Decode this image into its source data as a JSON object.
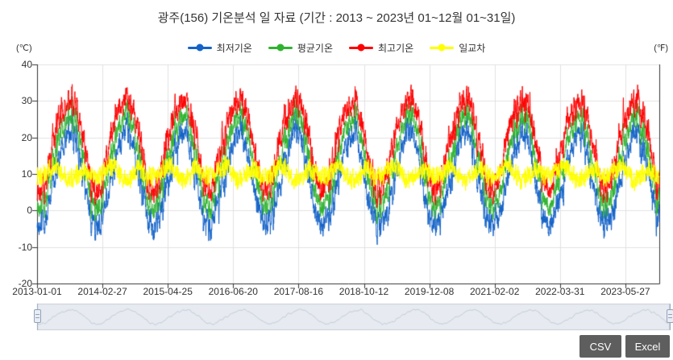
{
  "chart": {
    "title": "광주(156) 기온분석 일 자료 (기간 : 2013 ~ 2023년  01~12월 01~31일)",
    "y_axis_left": {
      "unit": "(℃)",
      "ticks": [
        40,
        30,
        20,
        10,
        0,
        -10,
        -20
      ],
      "min": -20,
      "max": 40
    },
    "y_axis_right": {
      "unit": "(℉)"
    },
    "x_axis": {
      "tick_labels": [
        "2013-01-01",
        "2014-02-27",
        "2015-04-25",
        "2016-06-20",
        "2017-08-16",
        "2018-10-12",
        "2019-12-08",
        "2021-02-02",
        "2022-03-31",
        "2023-05-27"
      ],
      "tick_interval_days": 422,
      "span_days": 4017
    }
  },
  "chart_data": {
    "type": "line",
    "title": "광주(156) 기온분석 일 자료",
    "x_start": "2013-01-01",
    "x_end": "2023-12-31",
    "resolution": "daily",
    "ylim": [
      -20,
      40
    ],
    "y_tick_step": 10,
    "grid": true,
    "legend_position": "top-center",
    "series": [
      {
        "name": "최저기온",
        "color": "#1563c8",
        "monthly_climatology": [
          -3.6,
          -2.0,
          2.1,
          7.3,
          12.8,
          18.0,
          22.2,
          22.6,
          17.6,
          10.7,
          4.1,
          -1.5
        ],
        "observed_range": [
          -13,
          25
        ]
      },
      {
        "name": "평균기온",
        "color": "#2fb32f",
        "monthly_climatology": [
          0.6,
          2.5,
          7.3,
          13.1,
          18.4,
          22.5,
          25.9,
          26.5,
          22.0,
          15.8,
          9.1,
          2.9
        ],
        "observed_range": [
          -8,
          29
        ]
      },
      {
        "name": "최고기온",
        "color": "#fe0000",
        "monthly_climatology": [
          5.7,
          7.7,
          13.2,
          19.3,
          24.6,
          27.9,
          30.4,
          31.4,
          27.4,
          22.0,
          14.9,
          7.9
        ],
        "observed_range": [
          -2,
          38.5
        ]
      },
      {
        "name": "일교차",
        "color": "#ffff00",
        "monthly_climatology": [
          9.3,
          9.7,
          11.1,
          12.0,
          11.8,
          9.9,
          8.2,
          8.8,
          9.8,
          11.3,
          10.8,
          9.4
        ],
        "observed_range": [
          1,
          19
        ]
      }
    ],
    "daily_noise_amplitude_c": 7,
    "navigator": {
      "present": true,
      "selected_range": "full"
    }
  },
  "buttons": {
    "csv": "CSV",
    "excel": "Excel"
  }
}
